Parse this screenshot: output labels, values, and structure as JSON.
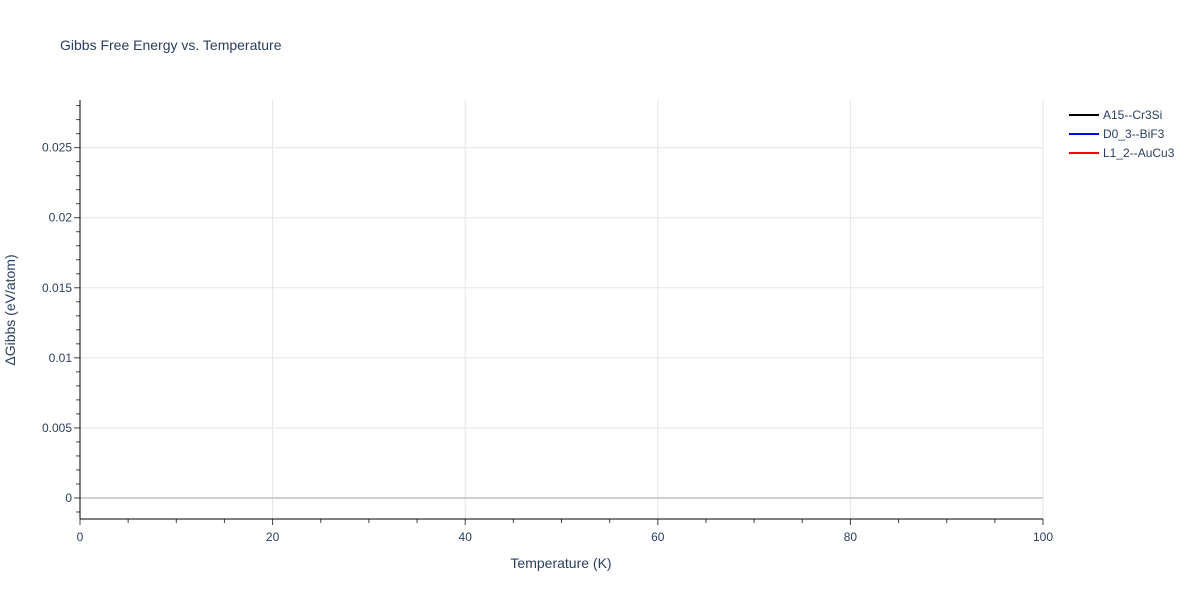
{
  "chart_data": {
    "type": "line",
    "title": "Gibbs Free Energy vs. Temperature",
    "xlabel": "Temperature (K)",
    "ylabel": "ΔGibbs (eV/atom)",
    "xlim": [
      0,
      100
    ],
    "ylim": [
      -0.0015,
      0.0284
    ],
    "x_ticks": [
      0,
      20,
      40,
      60,
      80,
      100
    ],
    "y_ticks": [
      0,
      0.005,
      0.01,
      0.015,
      0.02,
      0.025
    ],
    "y_tick_labels": [
      "0",
      "0.005",
      "0.01",
      "0.015",
      "0.02",
      "0.025"
    ],
    "x_minor_step": 5,
    "y_minor_step": 0.001,
    "grid": true,
    "legend_placement": "top-right outside",
    "series": [
      {
        "name": "A15--Cr3Si",
        "color": "#000000",
        "x": [],
        "y": []
      },
      {
        "name": "D0_3--BiF3",
        "color": "#0000ff",
        "x": [],
        "y": []
      },
      {
        "name": "L1_2--AuCu3",
        "color": "#ff0000",
        "x": [],
        "y": []
      }
    ]
  }
}
